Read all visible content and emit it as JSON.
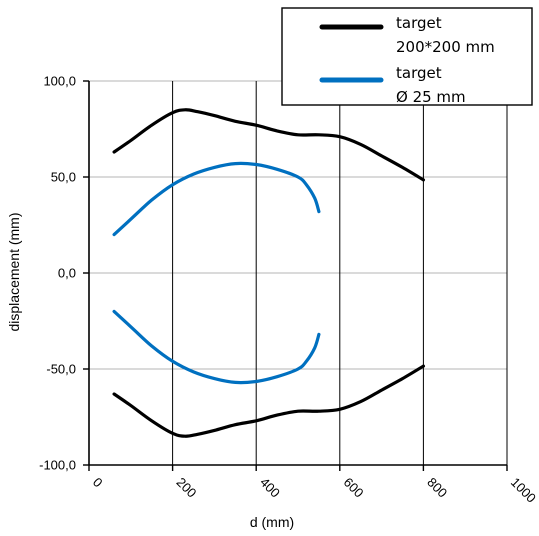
{
  "chart_data": {
    "type": "line",
    "xlabel": "d (mm)",
    "ylabel": "displacement (mm)",
    "xlim": [
      0,
      1000
    ],
    "ylim": [
      -100,
      100
    ],
    "x_ticks": [
      "0",
      "200",
      "400",
      "600",
      "800",
      "1000"
    ],
    "y_ticks": [
      "100,0",
      "50,0",
      "0,0",
      "-50,0",
      "-100,0"
    ],
    "grid": {
      "vertical": true,
      "horizontal": true
    },
    "legend_position": "top-right",
    "legend": [
      {
        "line1": "target",
        "line2": "200*200 mm",
        "color": "#000000"
      },
      {
        "line1": "target",
        "line2": "Ø 25 mm",
        "color": "#0070C0"
      }
    ],
    "series": [
      {
        "group": "200*200",
        "color": "#000000",
        "x": [
          60,
          100,
          150,
          200,
          230,
          260,
          300,
          350,
          400,
          450,
          500,
          550,
          600,
          650,
          700,
          750,
          800
        ],
        "y": [
          63,
          69,
          77,
          83.5,
          85,
          84,
          82,
          79,
          77,
          74,
          72,
          72,
          71,
          67,
          61,
          55,
          48.5
        ]
      },
      {
        "group": "200*200",
        "color": "#000000",
        "x": [
          60,
          100,
          150,
          200,
          230,
          260,
          300,
          350,
          400,
          450,
          500,
          550,
          600,
          650,
          700,
          750,
          800
        ],
        "y": [
          -63,
          -69,
          -77,
          -83.5,
          -85,
          -84,
          -82,
          -79,
          -77,
          -74,
          -72,
          -72,
          -71,
          -67,
          -61,
          -55,
          -48.5
        ]
      },
      {
        "group": "25mm",
        "color": "#0070C0",
        "x": [
          60,
          100,
          150,
          200,
          250,
          300,
          350,
          400,
          450,
          500,
          520,
          540,
          550
        ],
        "y": [
          20,
          28,
          38,
          46,
          51.5,
          55,
          57,
          56.5,
          54,
          50,
          46,
          39,
          32
        ]
      },
      {
        "group": "25mm",
        "color": "#0070C0",
        "x": [
          60,
          100,
          150,
          200,
          250,
          300,
          350,
          400,
          450,
          500,
          520,
          540,
          550
        ],
        "y": [
          -20,
          -28,
          -38,
          -46,
          -51.5,
          -55,
          -57,
          -56.5,
          -54,
          -50,
          -46,
          -39,
          -32
        ]
      }
    ]
  }
}
